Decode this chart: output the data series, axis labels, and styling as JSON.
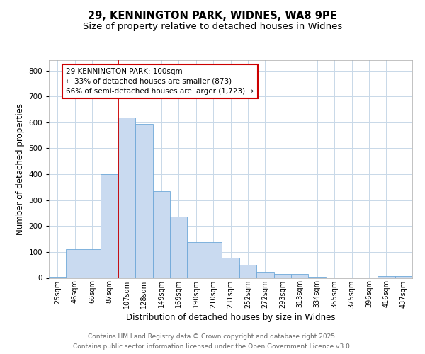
{
  "title_line1": "29, KENNINGTON PARK, WIDNES, WA8 9PE",
  "title_line2": "Size of property relative to detached houses in Widnes",
  "xlabel": "Distribution of detached houses by size in Widnes",
  "ylabel": "Number of detached properties",
  "bar_labels": [
    "25sqm",
    "46sqm",
    "66sqm",
    "87sqm",
    "107sqm",
    "128sqm",
    "149sqm",
    "169sqm",
    "190sqm",
    "210sqm",
    "231sqm",
    "252sqm",
    "272sqm",
    "293sqm",
    "313sqm",
    "334sqm",
    "355sqm",
    "375sqm",
    "396sqm",
    "416sqm",
    "437sqm"
  ],
  "bar_values": [
    5,
    110,
    110,
    400,
    620,
    595,
    335,
    237,
    138,
    138,
    78,
    50,
    24,
    15,
    16,
    4,
    2,
    1,
    0,
    6,
    8
  ],
  "bar_color": "#c9daf0",
  "bar_edge_color": "#6fa8d8",
  "red_line_index": 4,
  "annotation_text": "29 KENNINGTON PARK: 100sqm\n← 33% of detached houses are smaller (873)\n66% of semi-detached houses are larger (1,723) →",
  "annotation_box_color": "#ffffff",
  "annotation_box_edge": "#cc0000",
  "red_line_color": "#cc0000",
  "ylim": [
    0,
    840
  ],
  "yticks": [
    0,
    100,
    200,
    300,
    400,
    500,
    600,
    700,
    800
  ],
  "footer_line1": "Contains HM Land Registry data © Crown copyright and database right 2025.",
  "footer_line2": "Contains public sector information licensed under the Open Government Licence v3.0.",
  "bg_color": "#ffffff",
  "grid_color": "#c8d8e8",
  "title_fontsize": 10.5,
  "subtitle_fontsize": 9.5,
  "axis_label_fontsize": 8.5,
  "tick_fontsize": 7,
  "annotation_fontsize": 7.5,
  "footer_fontsize": 6.5
}
